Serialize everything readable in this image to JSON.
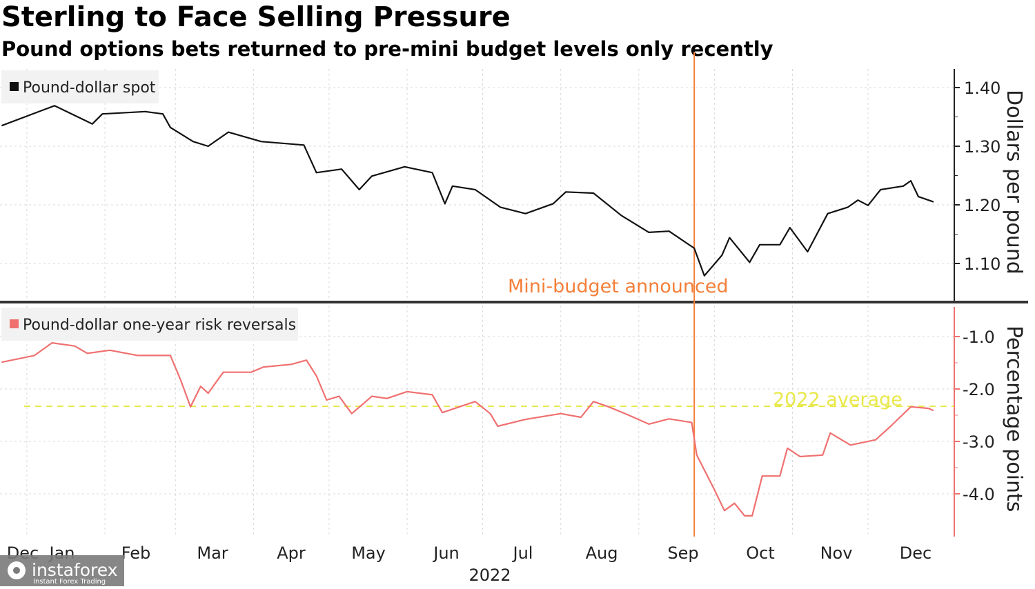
{
  "title": "Sterling to Face Selling Pressure",
  "subtitle": "Pound options bets returned to pre-mini budget levels only recently",
  "watermark": {
    "brand": "instaforex",
    "tagline": "Instant Forex Trading"
  },
  "colors": {
    "spot": "#111111",
    "risk": "#f07070",
    "event": "#f47f3a",
    "average": "#e8e84a",
    "grid": "#d8d8d8"
  },
  "chart_data": [
    {
      "type": "line",
      "legend": "Pound-dollar spot",
      "ylabel": "Dollars per pound",
      "yticks": [
        "1.10",
        "1.20",
        "1.30",
        "1.40"
      ],
      "ylim": [
        1.04,
        1.43
      ],
      "xlim": [
        "2021-12-22",
        "2022-12-28"
      ],
      "grid": true,
      "legend_position": "top-left",
      "annotation": {
        "label": "Mini-budget announced",
        "date": "2022-09-23"
      },
      "series": [
        {
          "name": "Pound-dollar spot",
          "points": [
            [
              "2021-12-22",
              1.335
            ],
            [
              "2022-01-07",
              1.361
            ],
            [
              "2022-01-12",
              1.369
            ],
            [
              "2022-01-27",
              1.338
            ],
            [
              "2022-01-31",
              1.355
            ],
            [
              "2022-02-17",
              1.359
            ],
            [
              "2022-02-24",
              1.355
            ],
            [
              "2022-02-27",
              1.332
            ],
            [
              "2022-03-08",
              1.308
            ],
            [
              "2022-03-14",
              1.3
            ],
            [
              "2022-03-22",
              1.324
            ],
            [
              "2022-04-04",
              1.308
            ],
            [
              "2022-04-21",
              1.302
            ],
            [
              "2022-04-26",
              1.255
            ],
            [
              "2022-05-06",
              1.261
            ],
            [
              "2022-05-13",
              1.226
            ],
            [
              "2022-05-18",
              1.249
            ],
            [
              "2022-05-31",
              1.265
            ],
            [
              "2022-06-11",
              1.255
            ],
            [
              "2022-06-16",
              1.202
            ],
            [
              "2022-06-19",
              1.232
            ],
            [
              "2022-06-28",
              1.226
            ],
            [
              "2022-07-08",
              1.196
            ],
            [
              "2022-07-18",
              1.185
            ],
            [
              "2022-07-29",
              1.202
            ],
            [
              "2022-08-03",
              1.222
            ],
            [
              "2022-08-14",
              1.22
            ],
            [
              "2022-08-25",
              1.182
            ],
            [
              "2022-09-05",
              1.153
            ],
            [
              "2022-09-13",
              1.155
            ],
            [
              "2022-09-23",
              1.126
            ],
            [
              "2022-09-27",
              1.079
            ],
            [
              "2022-10-04",
              1.114
            ],
            [
              "2022-10-07",
              1.144
            ],
            [
              "2022-10-15",
              1.102
            ],
            [
              "2022-10-19",
              1.132
            ],
            [
              "2022-10-27",
              1.132
            ],
            [
              "2022-10-31",
              1.161
            ],
            [
              "2022-11-07",
              1.12
            ],
            [
              "2022-11-15",
              1.185
            ],
            [
              "2022-11-23",
              1.196
            ],
            [
              "2022-11-27",
              1.208
            ],
            [
              "2022-12-01",
              1.199
            ],
            [
              "2022-12-06",
              1.226
            ],
            [
              "2022-12-15",
              1.232
            ],
            [
              "2022-12-18",
              1.241
            ],
            [
              "2022-12-21",
              1.214
            ],
            [
              "2022-12-27",
              1.205
            ]
          ]
        }
      ]
    },
    {
      "type": "line",
      "legend": "Pound-dollar one-year risk reversals",
      "ylabel": "Percentage points",
      "yticks": [
        "-1.0",
        "-2.0",
        "-3.0",
        "-4.0"
      ],
      "ylim": [
        -4.8,
        -0.3
      ],
      "grid": true,
      "legend_position": "top-left",
      "average": {
        "label": "2022 average",
        "value": -2.33
      },
      "xticks": [
        "Dec",
        "Jan",
        "Feb",
        "Mar",
        "Apr",
        "May",
        "Jun",
        "Jul",
        "Aug",
        "Sep",
        "Oct",
        "Nov",
        "Dec"
      ],
      "xyear": "2022",
      "series": [
        {
          "name": "Pound-dollar one-year risk reversals",
          "points": [
            [
              "2021-12-22",
              -1.49
            ],
            [
              "2022-01-04",
              -1.36
            ],
            [
              "2022-01-11",
              -1.12
            ],
            [
              "2022-01-20",
              -1.18
            ],
            [
              "2022-01-25",
              -1.32
            ],
            [
              "2022-02-03",
              -1.26
            ],
            [
              "2022-02-14",
              -1.36
            ],
            [
              "2022-02-27",
              -1.36
            ],
            [
              "2022-03-03",
              -1.82
            ],
            [
              "2022-03-07",
              -2.34
            ],
            [
              "2022-03-11",
              -1.95
            ],
            [
              "2022-03-14",
              -2.08
            ],
            [
              "2022-03-20",
              -1.68
            ],
            [
              "2022-03-31",
              -1.68
            ],
            [
              "2022-04-05",
              -1.58
            ],
            [
              "2022-04-16",
              -1.53
            ],
            [
              "2022-04-22",
              -1.45
            ],
            [
              "2022-04-26",
              -1.75
            ],
            [
              "2022-04-30",
              -2.21
            ],
            [
              "2022-05-05",
              -2.14
            ],
            [
              "2022-05-10",
              -2.47
            ],
            [
              "2022-05-18",
              -2.14
            ],
            [
              "2022-05-24",
              -2.18
            ],
            [
              "2022-06-01",
              -2.05
            ],
            [
              "2022-06-11",
              -2.11
            ],
            [
              "2022-06-15",
              -2.45
            ],
            [
              "2022-06-28",
              -2.24
            ],
            [
              "2022-07-04",
              -2.47
            ],
            [
              "2022-07-07",
              -2.71
            ],
            [
              "2022-07-18",
              -2.58
            ],
            [
              "2022-08-01",
              -2.47
            ],
            [
              "2022-08-09",
              -2.54
            ],
            [
              "2022-08-14",
              -2.24
            ],
            [
              "2022-08-20",
              -2.34
            ],
            [
              "2022-08-28",
              -2.5
            ],
            [
              "2022-09-05",
              -2.67
            ],
            [
              "2022-09-13",
              -2.57
            ],
            [
              "2022-09-22",
              -2.64
            ],
            [
              "2022-09-24",
              -3.26
            ],
            [
              "2022-10-01",
              -3.92
            ],
            [
              "2022-10-05",
              -4.32
            ],
            [
              "2022-10-09",
              -4.18
            ],
            [
              "2022-10-13",
              -4.42
            ],
            [
              "2022-10-16",
              -4.42
            ],
            [
              "2022-10-20",
              -3.66
            ],
            [
              "2022-10-27",
              -3.66
            ],
            [
              "2022-10-30",
              -3.13
            ],
            [
              "2022-11-04",
              -3.29
            ],
            [
              "2022-11-13",
              -3.26
            ],
            [
              "2022-11-16",
              -2.84
            ],
            [
              "2022-11-24",
              -3.07
            ],
            [
              "2022-12-04",
              -2.97
            ],
            [
              "2022-12-10",
              -2.71
            ],
            [
              "2022-12-18",
              -2.34
            ],
            [
              "2022-12-25",
              -2.37
            ],
            [
              "2022-12-27",
              -2.41
            ]
          ]
        }
      ]
    }
  ]
}
